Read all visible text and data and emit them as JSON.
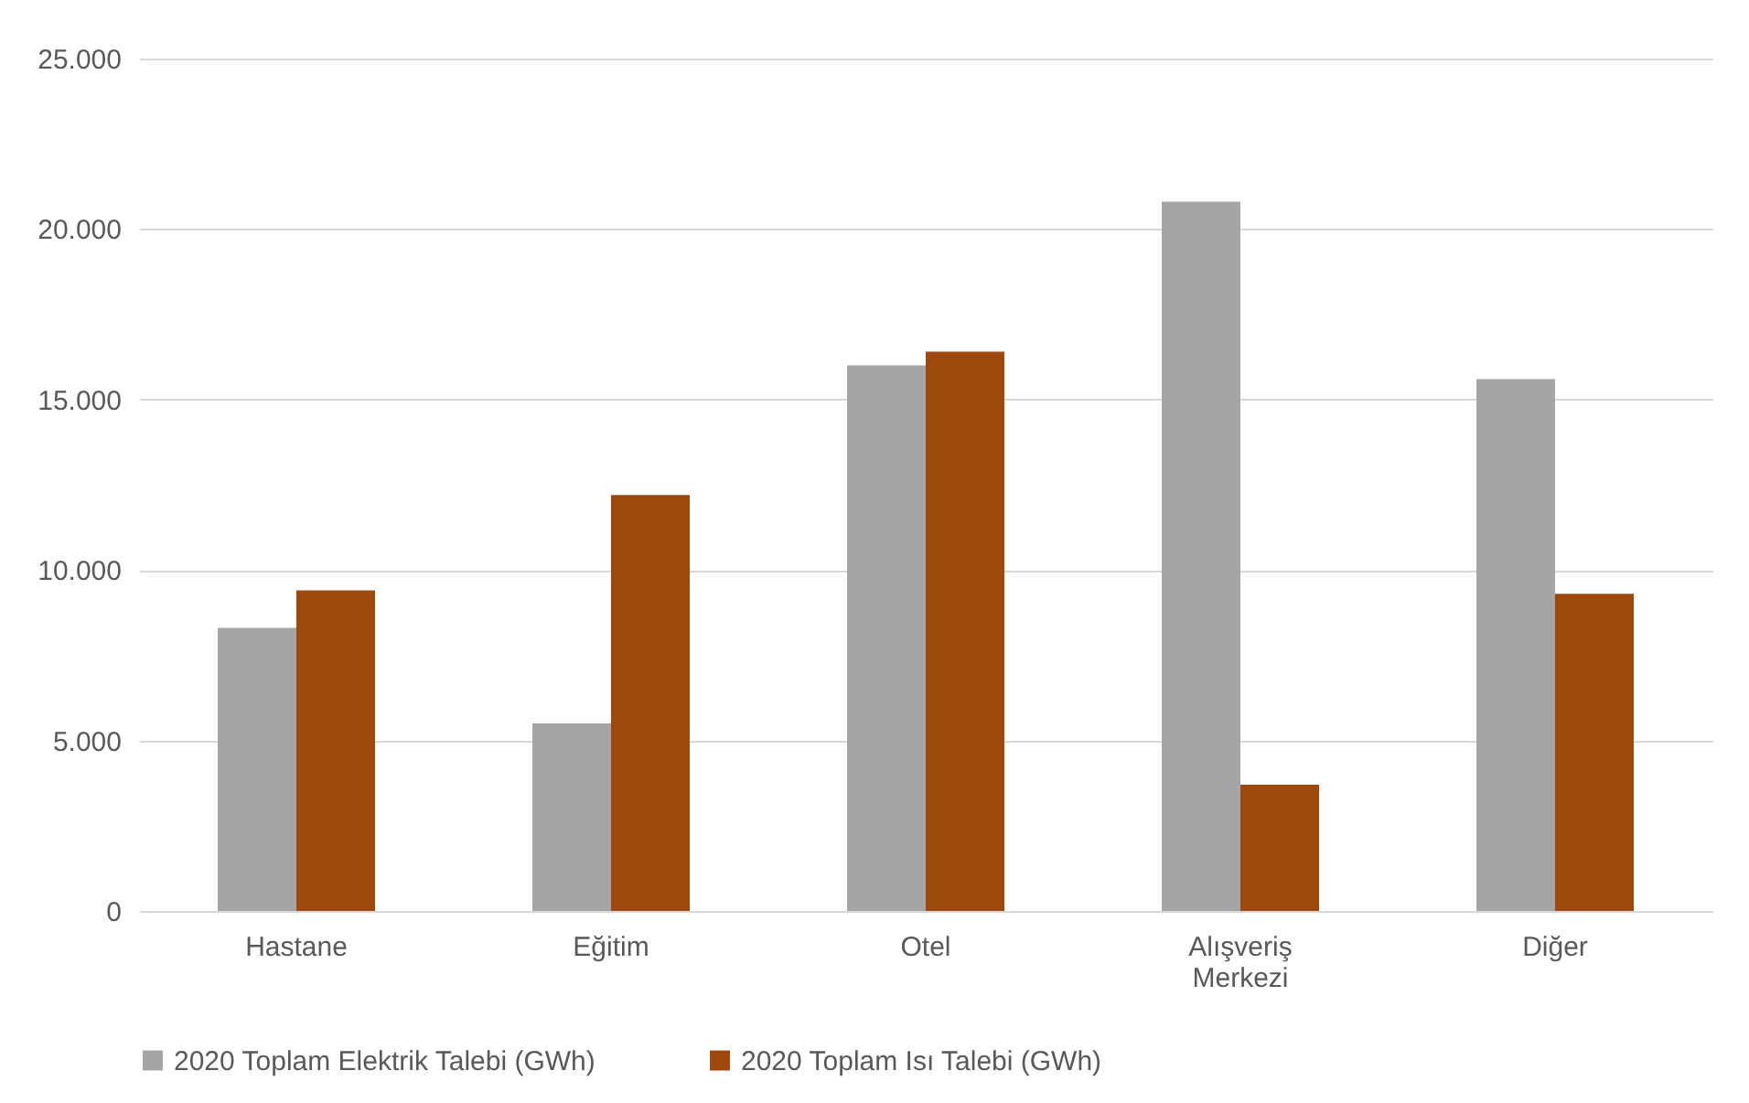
{
  "chart_data": {
    "type": "bar",
    "categories": [
      "Hastane",
      "Eğitim",
      "Otel",
      "Alışveriş Merkezi",
      "Diğer"
    ],
    "series": [
      {
        "name": "2020 Toplam Elektrik Talebi (GWh)",
        "color": "#a5a5a5",
        "values": [
          8300,
          5500,
          16000,
          20800,
          15600
        ]
      },
      {
        "name": "2020 Toplam Isı Talebi (GWh)",
        "color": "#9e480e",
        "values": [
          9400,
          12200,
          16400,
          3700,
          9300
        ]
      }
    ],
    "ylim": [
      0,
      25000
    ],
    "yticks": [
      {
        "value": 0,
        "label": "0"
      },
      {
        "value": 5000,
        "label": "5.000"
      },
      {
        "value": 10000,
        "label": "10.000"
      },
      {
        "value": 15000,
        "label": "15.000"
      },
      {
        "value": 20000,
        "label": "20.000"
      },
      {
        "value": 25000,
        "label": "25.000"
      }
    ],
    "grid": "y",
    "legend": "bottom"
  }
}
